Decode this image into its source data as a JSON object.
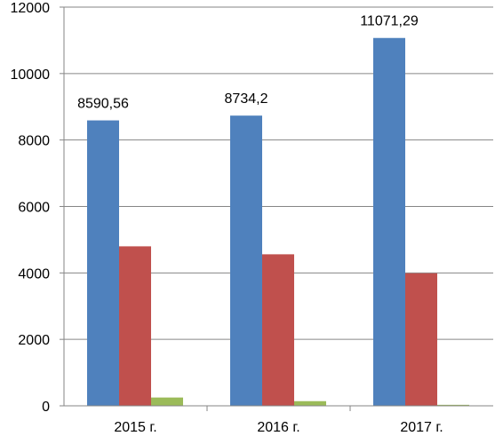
{
  "chart_data": {
    "type": "bar",
    "categories": [
      "2015 г.",
      "2016 г.",
      "2017 г."
    ],
    "series": [
      {
        "values": [
          8590.56,
          8734.2,
          11071.29
        ],
        "color": "#4f81bd"
      },
      {
        "values": [
          4800,
          4560,
          3990
        ],
        "color": "#c0504d"
      },
      {
        "values": [
          250,
          140,
          30
        ],
        "color": "#9bbb59"
      }
    ],
    "data_labels": [
      "8590,56",
      "8734,2",
      "11071,29"
    ],
    "title": "",
    "xlabel": "",
    "ylabel": "",
    "ylim": [
      0,
      12000
    ],
    "yticks": [
      0,
      2000,
      4000,
      6000,
      8000,
      10000,
      12000
    ],
    "ytick_labels": [
      "0",
      "2000",
      "4000",
      "6000",
      "8000",
      "10000",
      "12000"
    ],
    "grid": true,
    "legend": "none"
  }
}
